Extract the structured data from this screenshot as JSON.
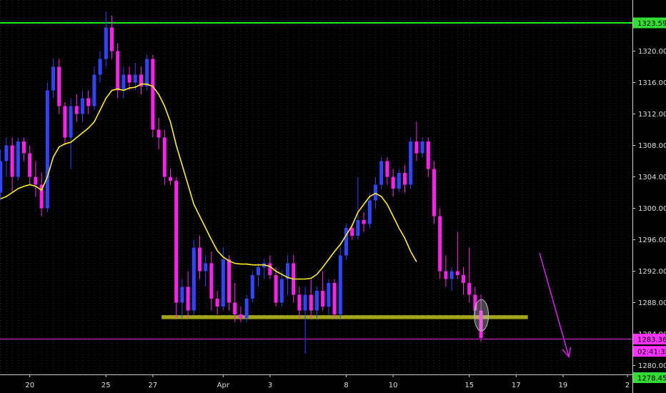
{
  "chart_data": {
    "type": "candlestick",
    "title": "",
    "xlabel": "",
    "ylabel": "",
    "ylim": [
      1276.5,
      1326.5
    ],
    "grid": "vertical-dotted",
    "x_ticks": [
      {
        "label": "20",
        "bar": 5
      },
      {
        "label": "25",
        "bar": 18
      },
      {
        "label": "27",
        "bar": 26
      },
      {
        "label": "Apr",
        "bar": 38
      },
      {
        "label": "3",
        "bar": 46
      },
      {
        "label": "8",
        "bar": 59
      },
      {
        "label": "10",
        "bar": 67
      },
      {
        "label": "15",
        "bar": 80
      },
      {
        "label": "17",
        "bar": 88
      },
      {
        "label": "19",
        "bar": 96
      },
      {
        "label": "2",
        "bar": 107
      }
    ],
    "y_ticks": [
      1280,
      1284,
      1288,
      1292,
      1296,
      1300,
      1304,
      1308,
      1312,
      1316,
      1320
    ],
    "y_tick_labels": [
      "1280.00",
      "1284.00",
      "1288.00",
      "1292.00",
      "1296.00",
      "1300.00",
      "1304.00",
      "1308.00",
      "1312.00",
      "1316.00",
      "1320.00"
    ],
    "price_tags": [
      {
        "label": "1323.59",
        "value": 1323.59,
        "color": "#33dd33"
      },
      {
        "label": "1283.36",
        "value": 1283.36,
        "color": "#ff33ff"
      },
      {
        "label": "02:41:32",
        "value": 1281.8,
        "color": "#ff33ff"
      },
      {
        "label": "1278.45",
        "value": 1278.45,
        "color": "#33dd33"
      }
    ],
    "horizontal_lines": [
      {
        "name": "resistance",
        "value": 1323.59,
        "color": "#22ee22"
      },
      {
        "name": "current-price",
        "value": 1283.36,
        "color": "#cc22cc"
      },
      {
        "name": "bottom",
        "value": 1278.45,
        "color": "#22ee22"
      }
    ],
    "support_zone": {
      "from_bar": 27.5,
      "to_bar": 90,
      "low": 1285.9,
      "high": 1286.4,
      "color": "#bfbf20"
    },
    "candles": [
      [
        1302.0,
        1307.5,
        1301.0,
        1306.0
      ],
      [
        1306.0,
        1309.0,
        1304.0,
        1308.0
      ],
      [
        1308.0,
        1309.0,
        1302.0,
        1304.0
      ],
      [
        1304.0,
        1309.0,
        1303.5,
        1308.5
      ],
      [
        1308.5,
        1309.0,
        1306.0,
        1307.0
      ],
      [
        1307.0,
        1308.0,
        1303.0,
        1304.0
      ],
      [
        1304.0,
        1306.0,
        1301.5,
        1303.0
      ],
      [
        1303.0,
        1304.5,
        1299.0,
        1300.0
      ],
      [
        1300.0,
        1316.0,
        1299.5,
        1315.0
      ],
      [
        1315.0,
        1319.0,
        1314.0,
        1318.0
      ],
      [
        1318.0,
        1319.0,
        1312.0,
        1313.0
      ],
      [
        1313.0,
        1313.5,
        1308.0,
        1309.0
      ],
      [
        1309.0,
        1314.0,
        1305.0,
        1313.0
      ],
      [
        1313.0,
        1314.5,
        1311.0,
        1312.0
      ],
      [
        1312.0,
        1315.0,
        1311.0,
        1314.0
      ],
      [
        1314.0,
        1315.0,
        1312.0,
        1313.0
      ],
      [
        1313.0,
        1318.0,
        1312.5,
        1317.0
      ],
      [
        1317.0,
        1320.0,
        1316.0,
        1319.0
      ],
      [
        1319.0,
        1325.0,
        1318.0,
        1323.0
      ],
      [
        1323.0,
        1324.5,
        1319.0,
        1320.0
      ],
      [
        1320.0,
        1321.0,
        1314.0,
        1315.0
      ],
      [
        1315.0,
        1318.0,
        1314.0,
        1317.0
      ],
      [
        1317.0,
        1318.0,
        1315.0,
        1316.0
      ],
      [
        1316.0,
        1318.5,
        1315.0,
        1317.0
      ],
      [
        1317.0,
        1318.0,
        1314.5,
        1315.5
      ],
      [
        1315.5,
        1319.5,
        1315.0,
        1319.0
      ],
      [
        1319.0,
        1319.5,
        1309.0,
        1310.0
      ],
      [
        1310.0,
        1311.5,
        1307.5,
        1309.0
      ],
      [
        1309.0,
        1310.0,
        1303.0,
        1304.0
      ],
      [
        1304.0,
        1305.0,
        1303.0,
        1303.5
      ],
      [
        1303.5,
        1304.0,
        1286.0,
        1288.0
      ],
      [
        1288.0,
        1291.0,
        1286.0,
        1290.0
      ],
      [
        1290.0,
        1292.0,
        1286.0,
        1287.0
      ],
      [
        1287.0,
        1296.0,
        1286.5,
        1295.0
      ],
      [
        1295.0,
        1296.5,
        1291.0,
        1292.0
      ],
      [
        1292.0,
        1294.0,
        1290.0,
        1293.0
      ],
      [
        1293.0,
        1294.5,
        1287.0,
        1288.5
      ],
      [
        1288.5,
        1289.5,
        1286.5,
        1287.5
      ],
      [
        1287.5,
        1295.0,
        1287.0,
        1293.5
      ],
      [
        1293.5,
        1294.0,
        1287.0,
        1288.0
      ],
      [
        1288.0,
        1290.5,
        1285.5,
        1286.5
      ],
      [
        1286.5,
        1287.5,
        1285.5,
        1286.0
      ],
      [
        1286.0,
        1289.0,
        1285.5,
        1288.5
      ],
      [
        1288.5,
        1292.0,
        1288.0,
        1291.5
      ],
      [
        1291.5,
        1293.0,
        1290.0,
        1292.5
      ],
      [
        1292.5,
        1293.5,
        1291.0,
        1293.0
      ],
      [
        1293.0,
        1294.0,
        1291.0,
        1291.5
      ],
      [
        1291.5,
        1292.5,
        1287.5,
        1288.0
      ],
      [
        1288.0,
        1292.0,
        1287.5,
        1291.0
      ],
      [
        1291.0,
        1294.0,
        1289.0,
        1293.0
      ],
      [
        1293.0,
        1294.0,
        1288.0,
        1289.0
      ],
      [
        1289.0,
        1290.0,
        1286.0,
        1287.0
      ],
      [
        1287.0,
        1290.0,
        1281.5,
        1289.0
      ],
      [
        1289.0,
        1291.0,
        1286.0,
        1287.0
      ],
      [
        1287.0,
        1290.0,
        1286.0,
        1289.5
      ],
      [
        1289.5,
        1292.0,
        1287.0,
        1287.5
      ],
      [
        1287.5,
        1291.0,
        1286.5,
        1290.5
      ],
      [
        1290.5,
        1291.0,
        1286.0,
        1286.5
      ],
      [
        1286.5,
        1295.0,
        1286.0,
        1294.0
      ],
      [
        1294.0,
        1298.0,
        1293.5,
        1297.5
      ],
      [
        1297.5,
        1298.0,
        1296.0,
        1296.5
      ],
      [
        1296.5,
        1304.0,
        1296.0,
        1298.5
      ],
      [
        1298.5,
        1299.5,
        1297.0,
        1298.0
      ],
      [
        1298.0,
        1302.0,
        1297.5,
        1301.0
      ],
      [
        1301.0,
        1304.0,
        1300.0,
        1303.0
      ],
      [
        1303.0,
        1306.5,
        1302.5,
        1306.0
      ],
      [
        1306.0,
        1306.5,
        1303.0,
        1304.0
      ],
      [
        1304.0,
        1305.0,
        1301.5,
        1302.5
      ],
      [
        1302.5,
        1305.0,
        1302.0,
        1304.5
      ],
      [
        1304.5,
        1305.5,
        1302.0,
        1303.0
      ],
      [
        1303.0,
        1309.0,
        1302.5,
        1308.5
      ],
      [
        1308.5,
        1311.0,
        1306.0,
        1307.0
      ],
      [
        1307.0,
        1309.0,
        1306.5,
        1308.5
      ],
      [
        1308.5,
        1309.0,
        1304.0,
        1305.0
      ],
      [
        1305.0,
        1306.0,
        1298.0,
        1299.0
      ],
      [
        1299.0,
        1300.0,
        1291.0,
        1292.0
      ],
      [
        1292.0,
        1294.0,
        1290.0,
        1291.0
      ],
      [
        1291.0,
        1292.5,
        1289.5,
        1292.0
      ],
      [
        1292.0,
        1297.0,
        1291.0,
        1291.5
      ],
      [
        1291.5,
        1292.5,
        1289.0,
        1290.5
      ],
      [
        1290.5,
        1295.0,
        1288.0,
        1289.0
      ],
      [
        1289.0,
        1290.0,
        1286.0,
        1287.0
      ],
      [
        1287.0,
        1289.0,
        1283.0,
        1283.5
      ]
    ],
    "moving_average": {
      "color": "#ffee22",
      "values": [
        1301.2,
        1301.5,
        1302.0,
        1302.5,
        1302.8,
        1303.0,
        1302.8,
        1302.3,
        1304.0,
        1306.5,
        1307.8,
        1308.2,
        1308.4,
        1309.0,
        1309.6,
        1310.2,
        1311.0,
        1312.5,
        1314.0,
        1315.0,
        1315.2,
        1315.0,
        1315.3,
        1315.4,
        1315.8,
        1315.8,
        1315.5,
        1314.5,
        1313.0,
        1311.0,
        1308.0,
        1305.5,
        1303.0,
        1300.5,
        1299.0,
        1297.5,
        1296.0,
        1294.6,
        1293.8,
        1293.3,
        1293.0,
        1292.9,
        1292.9,
        1292.8,
        1292.8,
        1292.8,
        1292.6,
        1292.0,
        1291.6,
        1291.2,
        1291.0,
        1291.0,
        1291.0,
        1291.1,
        1291.6,
        1292.5,
        1293.5,
        1294.5,
        1295.4,
        1296.6,
        1297.8,
        1299.5,
        1300.5,
        1301.5,
        1301.9,
        1301.5,
        1300.5,
        1299.0,
        1297.5,
        1296.2,
        1294.5,
        1293.2
      ],
      "start_bar": 0,
      "note_bars_from": 11
    },
    "projection_arrow": {
      "from_bar": 92,
      "from_value": 1294.3,
      "to_bar": 97,
      "to_value": 1281.1,
      "color": "#cc22dd"
    },
    "highlight": {
      "bar": 82,
      "value": 1286.3,
      "color": "#bbbbbb"
    }
  }
}
